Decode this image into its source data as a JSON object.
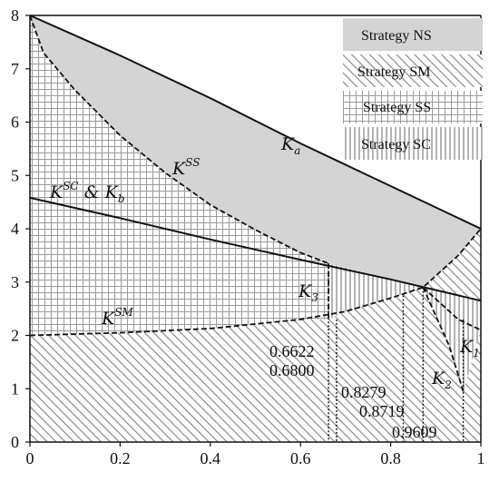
{
  "chart_data": {
    "type": "area",
    "title": "",
    "xlabel": "",
    "ylabel": "",
    "xlim": [
      0,
      1
    ],
    "ylim": [
      0,
      8
    ],
    "xticks": [
      "0",
      "0.2",
      "0.4",
      "0.6",
      "0.8",
      "1"
    ],
    "yticks": [
      "0",
      "1",
      "2",
      "3",
      "4",
      "5",
      "6",
      "7",
      "8"
    ],
    "legend": {
      "placement": "top-right",
      "entries": [
        "Strategy NS",
        "Strategy SM",
        "Strategy SS",
        "Strategy SC"
      ]
    },
    "curves": [
      {
        "name": "K_a",
        "style": "solid",
        "x": [
          0,
          0.2,
          0.4,
          0.6,
          0.8,
          1.0
        ],
        "y": [
          8.0,
          7.25,
          6.45,
          5.6,
          4.8,
          4.0
        ]
      },
      {
        "name": "K^SC & K_b",
        "style": "solid",
        "x": [
          0,
          0.2,
          0.4,
          0.6,
          0.8,
          1.0
        ],
        "y": [
          4.58,
          4.2,
          3.8,
          3.42,
          3.05,
          2.65
        ]
      },
      {
        "name": "K^SS",
        "style": "dashed",
        "x": [
          0,
          0.03,
          0.1,
          0.2,
          0.3,
          0.4,
          0.5,
          0.6,
          0.6622
        ],
        "y": [
          8.0,
          7.3,
          6.6,
          5.75,
          5.05,
          4.45,
          3.98,
          3.55,
          3.35
        ]
      },
      {
        "name": "K^SM",
        "style": "dashed",
        "x": [
          0,
          0.2,
          0.4,
          0.6,
          0.7,
          0.8,
          0.8719,
          0.95,
          1.0
        ],
        "y": [
          2.0,
          2.05,
          2.13,
          2.3,
          2.45,
          2.7,
          2.9,
          3.5,
          4.0
        ]
      },
      {
        "name": "K_1",
        "style": "dashed",
        "x": [
          0.8719,
          0.95,
          1.0
        ],
        "y": [
          2.9,
          2.3,
          2.1
        ]
      },
      {
        "name": "K_2",
        "style": "dashed",
        "x": [
          0.8719,
          0.93,
          0.9609
        ],
        "y": [
          2.9,
          1.8,
          0.95
        ]
      },
      {
        "name": "K_3",
        "style": "dashed",
        "x": [
          0.6622,
          0.6622
        ],
        "y": [
          3.35,
          2.3
        ]
      }
    ],
    "vlines": [
      0.6622,
      0.68,
      0.8279,
      0.8719,
      0.9609
    ],
    "annotations": [
      "0.6622",
      "0.6800",
      "0.8279",
      "0.8719",
      "0.9609"
    ],
    "labels": {
      "Ka_main": "K",
      "Ka_sub": "a",
      "Kss_main": "K",
      "Kss_sup": "SS",
      "Ksc_main": "K",
      "Ksc_sup": "SC",
      "Ksc_amp": " & ",
      "Kb_main": "K",
      "Kb_sub": "b",
      "Ksm_main": "K",
      "Ksm_sup": "SM",
      "K3_main": "K",
      "K3_sub": "3",
      "K2_main": "K",
      "K2_sub": "2",
      "K1_main": "K",
      "K1_sub": "1"
    }
  }
}
